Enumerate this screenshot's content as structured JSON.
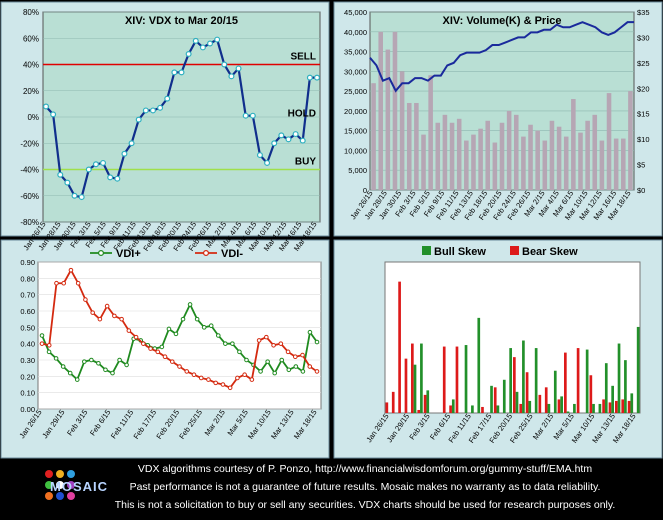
{
  "colors": {
    "panel_bg": "#b9dfd4",
    "panel_bg_blue": "#c9e3ee",
    "plot_bg_vdx": "#b9dfd4",
    "plot_bg_vol": "#b9dfd4",
    "vdx_line": "#102e8c",
    "sell_line": "#e00000",
    "buy_line": "#a0e04a",
    "vol_bar": "#b6a6b4",
    "price_line": "#1a2a9c",
    "vdi_plus": "#1f8a1f",
    "vdi_minus": "#d42a10",
    "bull": "#22902a",
    "bear": "#dd1a1a",
    "frame": "#cfe7ea"
  },
  "chart_data": [
    {
      "id": "vdx",
      "type": "line",
      "title": "XIV:     VDX to Mar 20/15",
      "ylim": [
        -80,
        80
      ],
      "yticks": [
        "80%",
        "60%",
        "40%",
        "20%",
        "0%",
        "-20%",
        "-40%",
        "-60%",
        "-80%"
      ],
      "ytick_values": [
        80,
        60,
        40,
        20,
        0,
        -20,
        -40,
        -60,
        -80
      ],
      "xtick_labels": [
        "Jan 26/15",
        "Jan 28/15",
        "Jan 30/15",
        "Feb 3/15",
        "Feb 5/15",
        "Feb 9/15",
        "Feb 11/15",
        "Feb 13/15",
        "Feb 18/15",
        "Feb 20/15",
        "Feb 24/15",
        "Feb 26/15",
        "Mar 2/15",
        "Mar 4/15",
        "Mar 6/15",
        "Mar 10/15",
        "Mar 12/15",
        "Mar 16/15",
        "Mar 18/15"
      ],
      "values": [
        8,
        2,
        -44,
        -50,
        -60,
        -61,
        -40,
        -36,
        -35,
        -46,
        -47,
        -28,
        -20,
        -2,
        5,
        5,
        7,
        14,
        34,
        34,
        48,
        58,
        53,
        56,
        59,
        40,
        31,
        37,
        1,
        1,
        -29,
        -35,
        -20,
        -14,
        -17,
        -13,
        -18,
        30,
        30
      ],
      "annotations": [
        {
          "text": "SELL",
          "y": 40
        },
        {
          "text": "HOLD",
          "y": 2
        },
        {
          "text": "BUY",
          "y": -40
        }
      ],
      "sell_level": 40,
      "buy_level": -40
    },
    {
      "id": "volume",
      "type": "bar",
      "title": "XIV: Volume(K) & Price",
      "ylim": [
        0,
        45000
      ],
      "yticks": [
        "45,000",
        "40,000",
        "35,000",
        "30,000",
        "25,000",
        "20,000",
        "15,000",
        "10,000",
        "5,000",
        "0"
      ],
      "ytick_values": [
        45000,
        40000,
        35000,
        30000,
        25000,
        20000,
        15000,
        10000,
        5000,
        0
      ],
      "y2lim": [
        0,
        35
      ],
      "y2ticks": [
        "$35",
        "$30",
        "$25",
        "$20",
        "$15",
        "$10",
        "$5",
        "$0"
      ],
      "y2tick_values": [
        35,
        30,
        25,
        20,
        15,
        10,
        5,
        0
      ],
      "xtick_labels": [
        "Jan 26/15",
        "Jan 28/15",
        "Jan 30/15",
        "Feb 3/15",
        "Feb 5/15",
        "Feb 9/15",
        "Feb 11/15",
        "Feb 13/15",
        "Feb 18/15",
        "Feb 20/15",
        "Feb 24/15",
        "Feb 26/15",
        "Mar 2/15",
        "Mar 4/15",
        "Mar 6/15",
        "Mar 10/15",
        "Mar 12/15",
        "Mar 16/15",
        "Mar 18/15"
      ],
      "series": [
        {
          "kind": "bar",
          "values": [
            27000,
            40000,
            35500,
            40000,
            30000,
            22000,
            22000,
            14000,
            29000,
            17000,
            19000,
            17000,
            18000,
            12500,
            14000,
            15500,
            17500,
            12000,
            17000,
            20000,
            19000,
            13500,
            16500,
            15000,
            12500,
            17500,
            16000,
            13500,
            23000,
            14500,
            17500,
            19000,
            12500,
            24500,
            13000,
            13000,
            25000
          ]
        },
        {
          "kind": "line",
          "values": [
            26,
            24.5,
            21.5,
            22,
            19.5,
            21,
            21,
            22,
            22,
            21.5,
            22.5,
            22.5,
            24.5,
            25,
            26.5,
            27,
            27,
            27,
            27.5,
            28.5,
            28.5,
            29,
            29.5,
            30,
            30,
            31,
            31,
            31.5,
            31.5,
            32.5,
            32,
            32,
            32.5,
            33,
            32.5,
            32,
            31,
            30.5,
            31,
            32,
            33,
            33
          ]
        }
      ]
    },
    {
      "id": "vdi",
      "type": "line",
      "title": "",
      "ylim": [
        0,
        0.9
      ],
      "yticks": [
        "0.90",
        "0.80",
        "0.70",
        "0.60",
        "0.50",
        "0.40",
        "0.30",
        "0.20",
        "0.10",
        "0.00"
      ],
      "ytick_values": [
        0.9,
        0.8,
        0.7,
        0.6,
        0.5,
        0.4,
        0.3,
        0.2,
        0.1,
        0
      ],
      "xtick_labels": [
        "Jan 26/15",
        "Jan 29/15",
        "Feb 3/15",
        "Feb 6/15",
        "Feb 11/15",
        "Feb 17/15",
        "Feb 20/15",
        "Feb 25/15",
        "Mar 2/15",
        "Mar 5/15",
        "Mar 10/15",
        "Mar 13/15",
        "Mar 18/15"
      ],
      "series": [
        {
          "name": "VDI+",
          "values": [
            0.45,
            0.35,
            0.31,
            0.26,
            0.22,
            0.18,
            0.29,
            0.3,
            0.28,
            0.24,
            0.22,
            0.3,
            0.27,
            0.43,
            0.42,
            0.39,
            0.37,
            0.38,
            0.49,
            0.46,
            0.55,
            0.64,
            0.55,
            0.5,
            0.51,
            0.45,
            0.4,
            0.4,
            0.35,
            0.3,
            0.27,
            0.23,
            0.29,
            0.22,
            0.3,
            0.24,
            0.26,
            0.23,
            0.47,
            0.41
          ]
        },
        {
          "name": "VDI-",
          "values": [
            0.4,
            0.39,
            0.77,
            0.77,
            0.85,
            0.77,
            0.67,
            0.59,
            0.55,
            0.63,
            0.57,
            0.55,
            0.48,
            0.44,
            0.4,
            0.37,
            0.35,
            0.32,
            0.29,
            0.26,
            0.23,
            0.21,
            0.19,
            0.18,
            0.16,
            0.15,
            0.13,
            0.19,
            0.21,
            0.18,
            0.42,
            0.44,
            0.39,
            0.4,
            0.35,
            0.32,
            0.33,
            0.26,
            0.23
          ]
        }
      ]
    },
    {
      "id": "skew",
      "type": "bar",
      "title": "",
      "ylim": [
        0,
        1
      ],
      "xtick_labels": [
        "Jan 26/15",
        "Jan 29/15",
        "Feb 3/15",
        "Feb 6/15",
        "Feb 11/15",
        "Feb 17/15",
        "Feb 20/15",
        "Feb 25/15",
        "Mar 2/15",
        "Mar 5/15",
        "Mar 10/15",
        "Mar 13/15",
        "Mar 18/15"
      ],
      "series": [
        {
          "name": "Bull Skew",
          "values": [
            0,
            0,
            0,
            0,
            0.32,
            0.46,
            0.15,
            0,
            0,
            0,
            0.09,
            0,
            0.45,
            0.05,
            0.63,
            0,
            0.18,
            0.05,
            0.22,
            0.43,
            0.14,
            0.48,
            0.08,
            0.43,
            0,
            0.06,
            0.28,
            0.11,
            0.01,
            0.06,
            0,
            0.42,
            0.06,
            0.06,
            0.33,
            0.18,
            0.46,
            0.35,
            0.13,
            0.57
          ]
        },
        {
          "name": "Bear Skew",
          "values": [
            0.07,
            0.14,
            0.87,
            0.36,
            0.46,
            0.02,
            0.12,
            0,
            0,
            0.44,
            0.05,
            0.44,
            0,
            0,
            0,
            0.04,
            0,
            0.17,
            0,
            0,
            0.37,
            0.06,
            0.27,
            0,
            0.12,
            0.17,
            0,
            0.09,
            0.4,
            0,
            0.43,
            0,
            0.25,
            0,
            0.09,
            0.07,
            0.08,
            0.09,
            0.08,
            0
          ]
        }
      ]
    }
  ],
  "footer": {
    "line1": "VDX algorithms courtesy of P. Ponzo, http://www.financialwisdomforum.org/gummy-stuff/EMA.htm",
    "line2": "Past performance is not a guarantee of future results.     Mosaic makes no warranty as to data reliability.",
    "line3": "This is not a solicitation to buy or sell any securities.  VDX charts should be used for research purposes only.",
    "logo_text": "MOSAIC"
  }
}
